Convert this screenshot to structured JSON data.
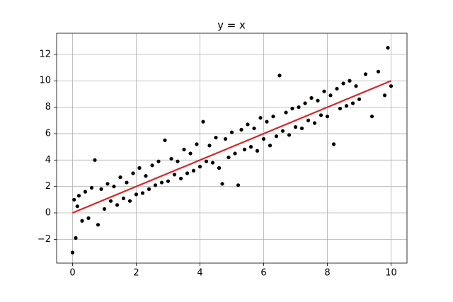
{
  "chart_data": {
    "type": "scatter",
    "title": "y = x",
    "series": [
      {
        "type": "scatter",
        "color": "#000000",
        "x": [
          0.0,
          0.05,
          0.1,
          0.15,
          0.2,
          0.3,
          0.4,
          0.5,
          0.6,
          0.7,
          0.8,
          0.9,
          1.0,
          1.1,
          1.2,
          1.3,
          1.4,
          1.5,
          1.6,
          1.7,
          1.8,
          1.9,
          2.0,
          2.1,
          2.2,
          2.3,
          2.4,
          2.5,
          2.6,
          2.7,
          2.8,
          2.9,
          3.0,
          3.1,
          3.2,
          3.3,
          3.4,
          3.5,
          3.6,
          3.7,
          3.8,
          3.9,
          4.0,
          4.1,
          4.2,
          4.3,
          4.4,
          4.5,
          4.6,
          4.7,
          4.8,
          4.9,
          5.0,
          5.1,
          5.2,
          5.3,
          5.4,
          5.5,
          5.6,
          5.7,
          5.8,
          5.9,
          6.0,
          6.1,
          6.2,
          6.3,
          6.4,
          6.5,
          6.6,
          6.7,
          6.8,
          6.9,
          7.0,
          7.1,
          7.2,
          7.3,
          7.4,
          7.5,
          7.6,
          7.7,
          7.8,
          7.9,
          8.0,
          8.1,
          8.2,
          8.3,
          8.4,
          8.5,
          8.6,
          8.7,
          8.8,
          8.9,
          9.0,
          9.2,
          9.4,
          9.6,
          9.8,
          9.9,
          10.0
        ],
        "values": [
          -3.0,
          1.0,
          -1.9,
          0.5,
          1.3,
          -0.6,
          1.6,
          -0.4,
          1.9,
          4.0,
          -0.9,
          1.8,
          0.3,
          2.2,
          0.9,
          2.0,
          0.6,
          2.7,
          1.1,
          2.3,
          0.9,
          3.0,
          1.4,
          3.4,
          1.5,
          2.8,
          1.8,
          3.6,
          2.1,
          3.9,
          2.3,
          5.5,
          2.4,
          4.1,
          2.9,
          3.9,
          2.6,
          4.8,
          3.0,
          4.5,
          3.2,
          5.2,
          3.5,
          6.9,
          3.9,
          5.1,
          3.8,
          5.7,
          3.4,
          2.2,
          5.6,
          4.2,
          6.1,
          4.5,
          2.1,
          6.3,
          4.8,
          6.7,
          5.0,
          6.4,
          4.7,
          7.2,
          5.6,
          6.9,
          5.1,
          7.3,
          5.8,
          10.4,
          6.2,
          7.6,
          5.9,
          7.9,
          6.5,
          8.0,
          6.4,
          8.3,
          7.0,
          8.7,
          6.8,
          8.5,
          7.4,
          9.2,
          7.3,
          8.9,
          5.2,
          9.4,
          7.9,
          9.8,
          8.1,
          10.0,
          8.3,
          9.6,
          8.6,
          10.5,
          7.3,
          10.7,
          8.9,
          12.5,
          9.6
        ]
      },
      {
        "type": "line",
        "color": "#d62728",
        "x": [
          0,
          10
        ],
        "values": [
          0,
          10
        ]
      }
    ],
    "xlim": [
      -0.5,
      10.5
    ],
    "xticks": [
      0,
      2,
      4,
      6,
      8,
      10
    ],
    "ylim": [
      -3.8,
      13.6
    ],
    "yticks": [
      {
        "value": -2,
        "label": "−2"
      },
      0,
      2,
      4,
      6,
      8,
      10,
      12
    ],
    "grid": true
  }
}
